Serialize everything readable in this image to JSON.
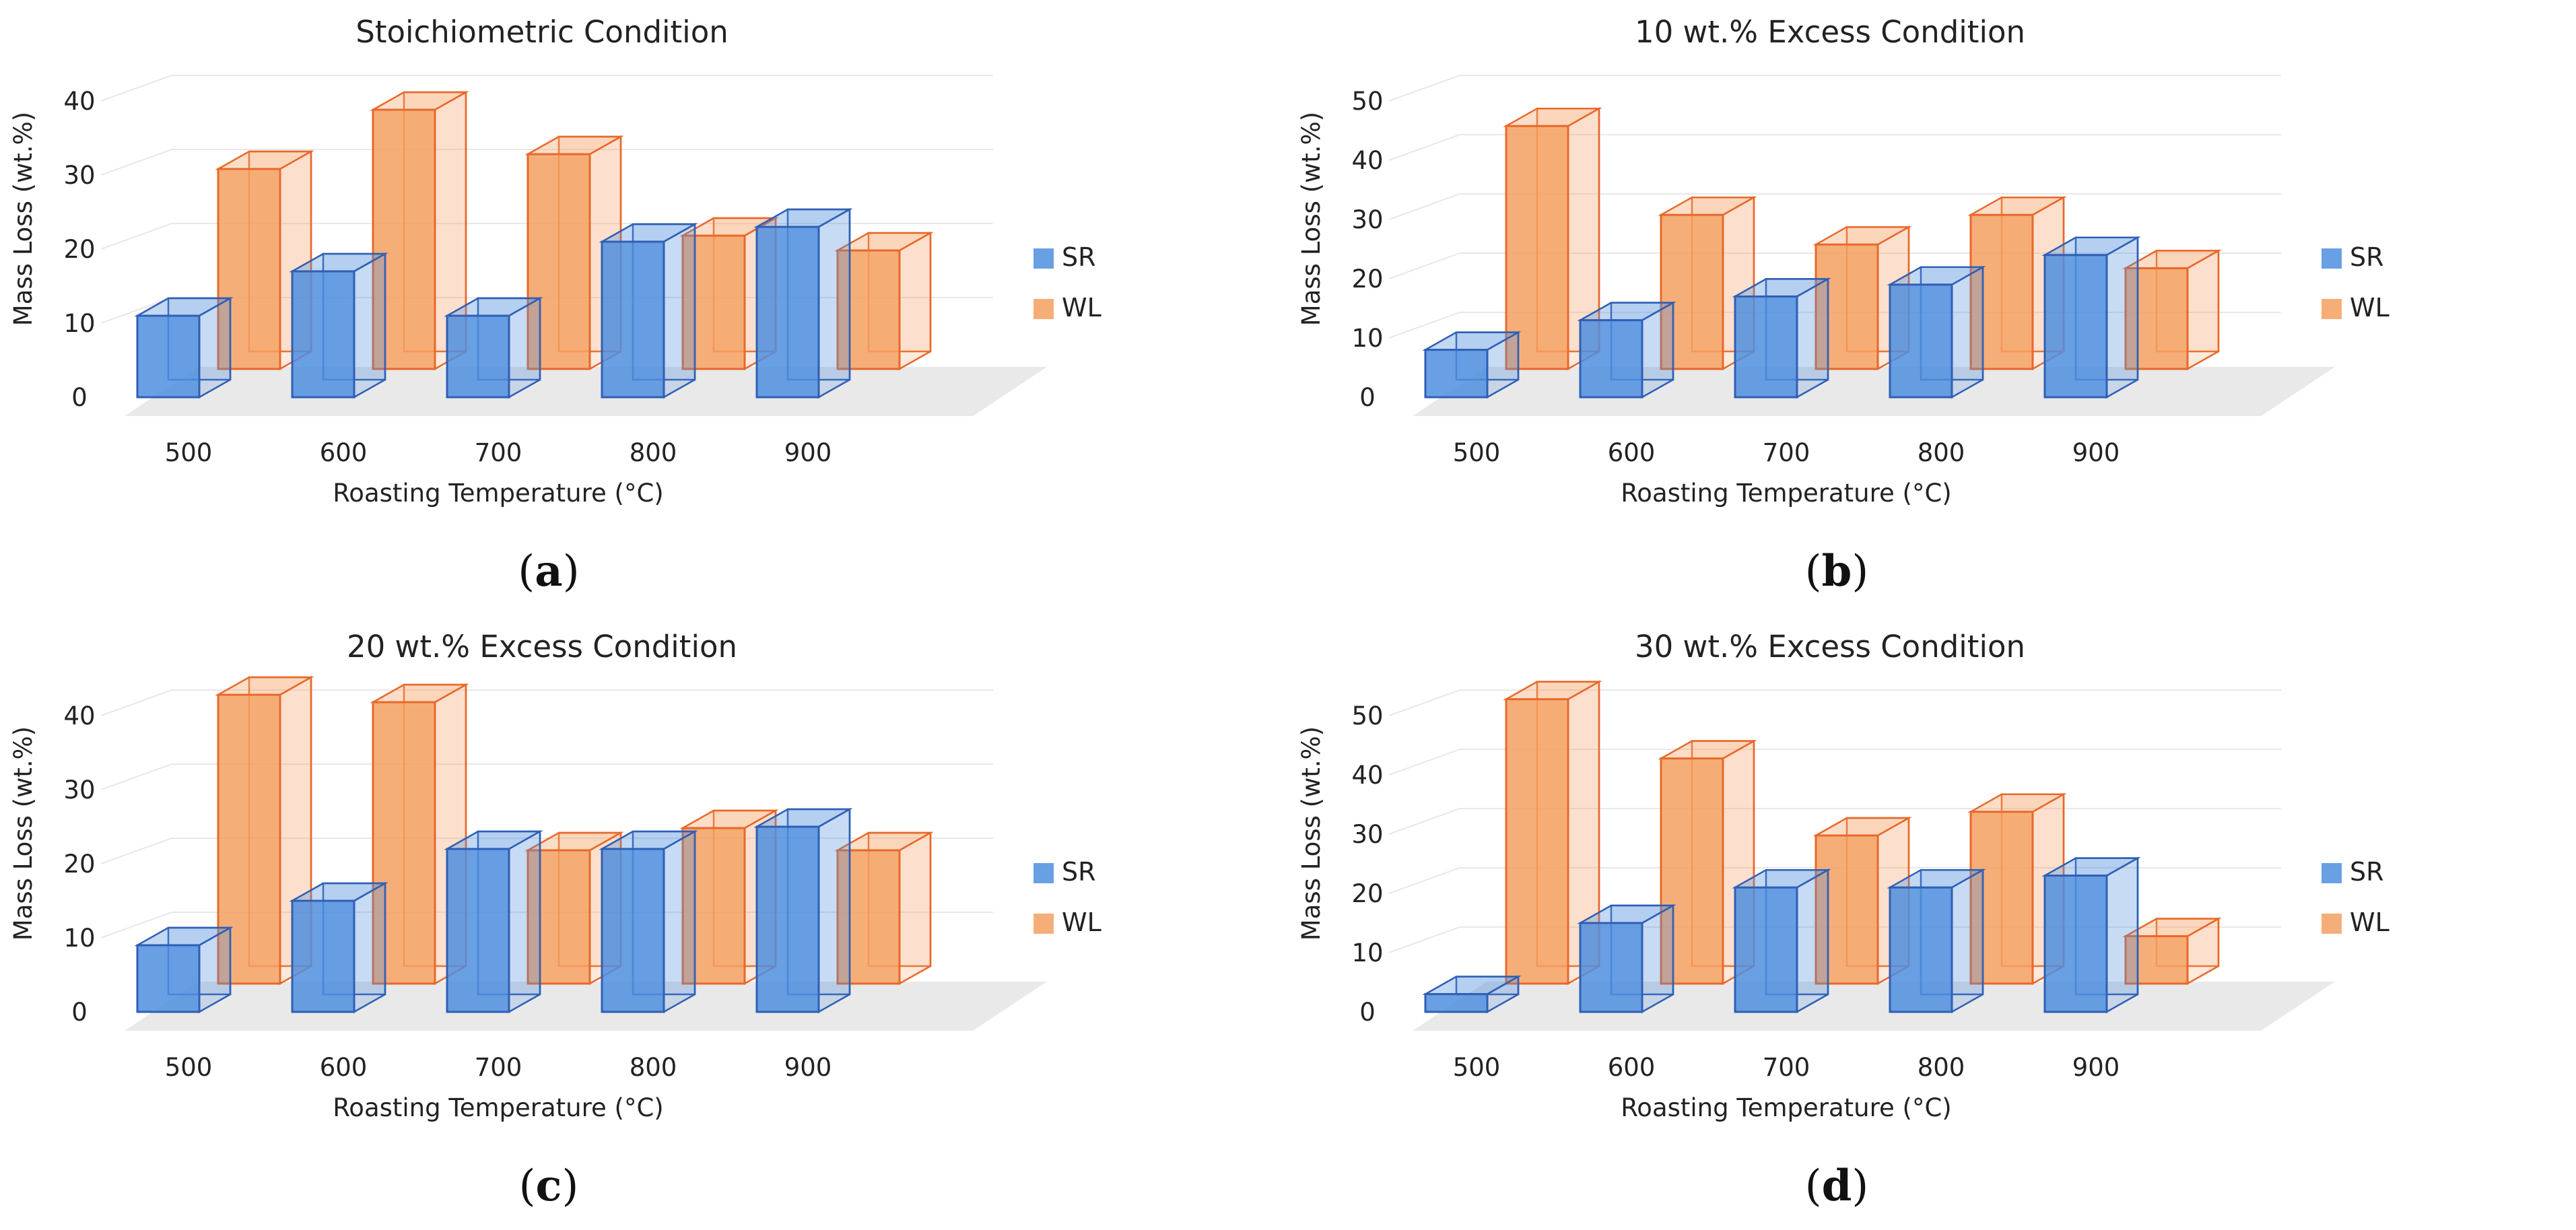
{
  "colors": {
    "SR": "#4f8ede",
    "SR_edge": "#2f5fb5",
    "WL": "#f5a060",
    "WL_edge": "#e8682a"
  },
  "chart_data": [
    {
      "panel": "a",
      "type": "bar",
      "title": "Stoichiometric Condition",
      "xlabel": "Roasting Temperature (°C)",
      "ylabel": "Mass Loss (wt.%)",
      "categories": [
        "500",
        "600",
        "700",
        "800",
        "900"
      ],
      "ylim": [
        0,
        40
      ],
      "yticks": [
        "0",
        "10",
        "20",
        "30",
        "40"
      ],
      "series": [
        {
          "name": "SR",
          "values": [
            11,
            17,
            11,
            21,
            23
          ]
        },
        {
          "name": "WL",
          "values": [
            27,
            35,
            29,
            18,
            16
          ]
        }
      ],
      "legend": [
        "SR",
        "WL"
      ],
      "legend_position": "right",
      "caption_letter": "a"
    },
    {
      "panel": "b",
      "type": "bar",
      "title": "10 wt.% Excess Condition",
      "xlabel": "Roasting Temperature (°C)",
      "ylabel": "Mass Loss (wt.%)",
      "categories": [
        "500",
        "600",
        "700",
        "800",
        "900"
      ],
      "ylim": [
        0,
        50
      ],
      "yticks": [
        "0",
        "10",
        "20",
        "30",
        "40",
        "50"
      ],
      "series": [
        {
          "name": "SR",
          "values": [
            8,
            13,
            17,
            19,
            24
          ]
        },
        {
          "name": "WL",
          "values": [
            41,
            26,
            21,
            26,
            17
          ]
        }
      ],
      "legend": [
        "SR",
        "WL"
      ],
      "legend_position": "right",
      "caption_letter": "b"
    },
    {
      "panel": "c",
      "type": "bar",
      "title": "20 wt.% Excess Condition",
      "xlabel": "Roasting Temperature (°C)",
      "ylabel": "Mass Loss (wt.%)",
      "categories": [
        "500",
        "600",
        "700",
        "800",
        "900"
      ],
      "ylim": [
        0,
        40
      ],
      "yticks": [
        "0",
        "10",
        "20",
        "30",
        "40"
      ],
      "series": [
        {
          "name": "SR",
          "values": [
            9,
            15,
            22,
            22,
            25
          ]
        },
        {
          "name": "WL",
          "values": [
            39,
            38,
            18,
            21,
            18
          ]
        }
      ],
      "legend": [
        "SR",
        "WL"
      ],
      "legend_position": "right",
      "caption_letter": "c"
    },
    {
      "panel": "d",
      "type": "bar",
      "title": "30 wt.% Excess Condition",
      "xlabel": "Roasting Temperature (°C)",
      "ylabel": "Mass Loss (wt.%)",
      "categories": [
        "500",
        "600",
        "700",
        "800",
        "900"
      ],
      "ylim": [
        0,
        50
      ],
      "yticks": [
        "0",
        "10",
        "20",
        "30",
        "40",
        "50"
      ],
      "series": [
        {
          "name": "SR",
          "values": [
            3,
            15,
            21,
            21,
            23
          ]
        },
        {
          "name": "WL",
          "values": [
            48,
            38,
            25,
            29,
            8
          ]
        }
      ],
      "legend": [
        "SR",
        "WL"
      ],
      "legend_position": "right",
      "caption_letter": "d"
    }
  ]
}
